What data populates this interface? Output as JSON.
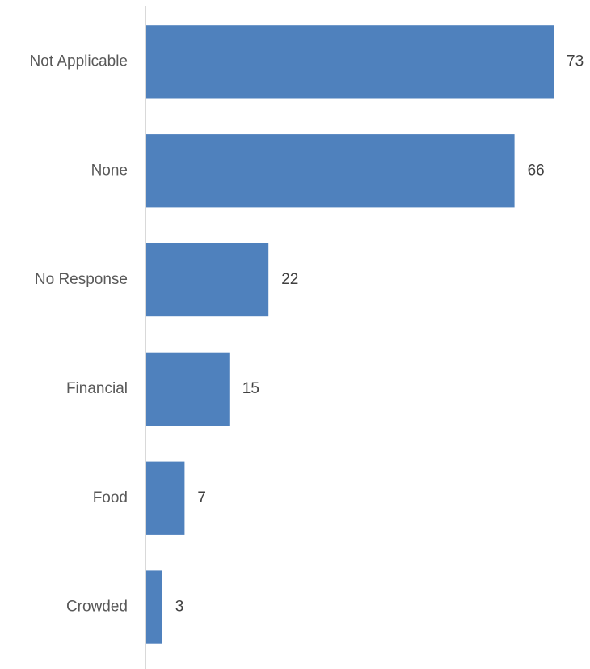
{
  "chart_data": {
    "type": "bar",
    "orientation": "horizontal",
    "categories": [
      "Not Applicable",
      "None",
      "No Response",
      "Financial",
      "Food",
      "Crowded"
    ],
    "values": [
      73,
      66,
      22,
      15,
      7,
      3
    ],
    "data_labels": [
      "73",
      "66",
      "22",
      "15",
      "7",
      "3"
    ],
    "title": "",
    "xlabel": "",
    "ylabel": "",
    "xlim": [
      0,
      79
    ],
    "grid": false,
    "legend": "none",
    "bar_color": "#4F81BD",
    "axis_color": "#D9D9D9"
  }
}
